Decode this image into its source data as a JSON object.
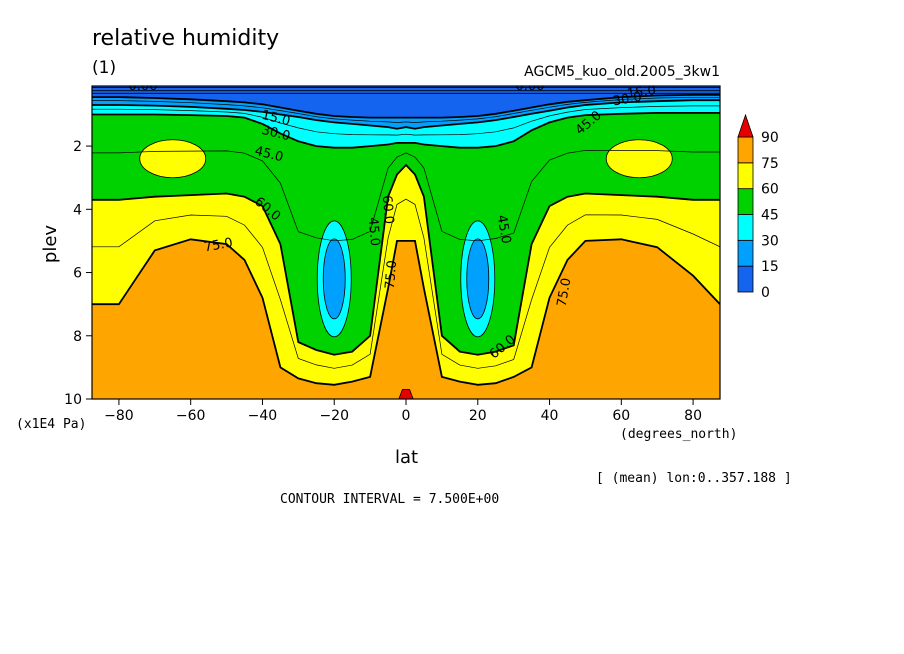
{
  "chart_data": {
    "type": "contour",
    "title": "relative humidity",
    "panel_label": "(1)",
    "dataset": "AGCM5_kuo_old.2005_3kw1",
    "xlabel": "lat",
    "x_units": "(degrees_north)",
    "ylabel": "plev",
    "y_units": "(x1E4 Pa)",
    "xlim": [
      -87.5,
      87.5
    ],
    "ylim": [
      10,
      0.1
    ],
    "x_ticks": [
      -80,
      -60,
      -40,
      -20,
      0,
      20,
      40,
      60,
      80
    ],
    "y_ticks": [
      2,
      4,
      6,
      8,
      10
    ],
    "averaging_note": "[ (mean) lon:0..357.188 ]",
    "contour_interval_text": "CONTOUR INTERVAL = 7.500E+00",
    "contour_labels": [
      "0.00",
      "0.00",
      "15.0",
      "15.0",
      "30.0",
      "30.0",
      "45.0",
      "45.0",
      "45.0",
      "45.0",
      "60.0",
      "60.0",
      "60.0",
      "75.0",
      "75.0",
      "75.0"
    ],
    "colorbar": {
      "levels": [
        0,
        15,
        30,
        45,
        60,
        75,
        90
      ],
      "colors": [
        "#1464f0",
        "#00a0ff",
        "#00ffff",
        "#00d200",
        "#ffff00",
        "#ffa500",
        "#e60000"
      ]
    },
    "band_boundaries": {
      "x": [
        -87.5,
        -80,
        -70,
        -60,
        -50,
        -45,
        -40,
        -35,
        -30,
        -25,
        -20,
        -15,
        -10,
        -5,
        -2.5,
        0,
        2.5,
        5,
        10,
        15,
        20,
        25,
        30,
        35,
        40,
        45,
        50,
        60,
        70,
        80,
        87.5
      ],
      "boundaries": [
        {
          "level": 15,
          "plev": [
            0.45,
            0.45,
            0.48,
            0.52,
            0.58,
            0.62,
            0.68,
            0.78,
            0.88,
            0.98,
            1.05,
            1.08,
            1.1,
            1.1,
            1.1,
            1.1,
            1.1,
            1.1,
            1.1,
            1.08,
            1.05,
            0.98,
            0.88,
            0.78,
            0.68,
            0.6,
            0.55,
            0.45,
            0.4,
            0.38,
            0.38
          ]
        },
        {
          "level": 30,
          "plev": [
            0.7,
            0.7,
            0.72,
            0.76,
            0.82,
            0.86,
            0.92,
            1.0,
            1.08,
            1.18,
            1.25,
            1.3,
            1.35,
            1.4,
            1.45,
            1.4,
            1.45,
            1.4,
            1.35,
            1.3,
            1.25,
            1.18,
            1.08,
            0.98,
            0.88,
            0.78,
            0.7,
            0.62,
            0.58,
            0.55,
            0.55
          ]
        },
        {
          "level": 45,
          "plev": [
            1.0,
            1.0,
            1.0,
            1.02,
            1.05,
            1.1,
            1.3,
            1.6,
            1.85,
            2.0,
            2.05,
            2.05,
            2.0,
            1.95,
            1.9,
            1.9,
            1.9,
            1.95,
            2.0,
            2.05,
            2.05,
            2.0,
            1.85,
            1.5,
            1.25,
            1.1,
            1.02,
            0.98,
            0.95,
            0.95,
            0.95
          ]
        },
        {
          "level": 60,
          "plev": [
            3.7,
            3.7,
            3.6,
            3.55,
            3.5,
            3.6,
            3.9,
            5.1,
            8.2,
            8.45,
            8.6,
            8.5,
            8.0,
            3.6,
            2.9,
            2.6,
            2.9,
            3.6,
            8.0,
            8.5,
            8.6,
            8.5,
            8.3,
            5.1,
            3.9,
            3.6,
            3.5,
            3.55,
            3.6,
            3.7,
            3.7
          ]
        },
        {
          "level": 75,
          "plev": [
            7.0,
            7.0,
            5.3,
            4.95,
            5.1,
            5.6,
            6.8,
            9.0,
            9.35,
            9.5,
            9.55,
            9.45,
            9.3,
            6.5,
            5.0,
            5.0,
            5.0,
            6.5,
            9.3,
            9.45,
            9.55,
            9.5,
            9.3,
            9.0,
            6.8,
            5.6,
            5.0,
            4.95,
            5.2,
            6.1,
            7.0
          ]
        }
      ]
    }
  }
}
